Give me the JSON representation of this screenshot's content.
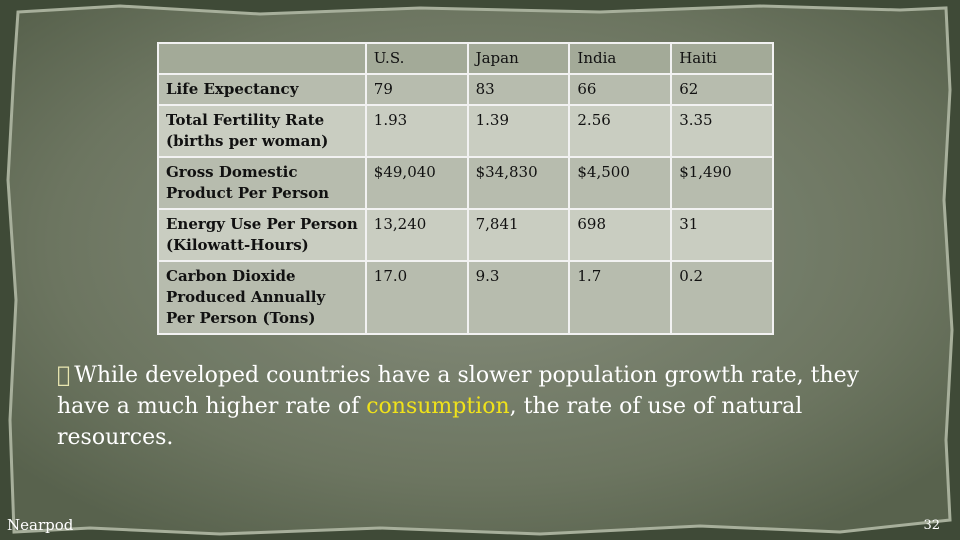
{
  "table": {
    "headers": [
      "",
      "U.S.",
      "Japan",
      "India",
      "Haiti"
    ],
    "rows": [
      {
        "label": "Life Expectancy",
        "values": [
          "79",
          "83",
          "66",
          "62"
        ]
      },
      {
        "label": "Total Fertility Rate (births per woman)",
        "values": [
          "1.93",
          "1.39",
          "2.56",
          "3.35"
        ]
      },
      {
        "label": "Gross Domestic Product Per Person",
        "values": [
          "$49,040",
          "$34,830",
          "$4,500",
          "$1,490"
        ]
      },
      {
        "label": "Energy Use Per Person (Kilowatt-Hours)",
        "values": [
          "13,240",
          "7,841",
          "698",
          "31"
        ]
      },
      {
        "label": "Carbon Dioxide Produced Annually Per Person (Tons)",
        "values": [
          "17.0",
          "9.3",
          "1.7",
          "0.2"
        ]
      }
    ]
  },
  "bullet": {
    "marker": "\u0000",
    "text_before": "While developed countries have a slower population growth rate, they have a much higher rate of ",
    "highlight": "consumption",
    "text_after": ", the rate of use of natural resources."
  },
  "footer": {
    "brand": "Nearpod",
    "page_number": "32"
  },
  "colors": {
    "background": "#3f4a37",
    "slab": "#6f7862",
    "highlight": "#f0e21a"
  }
}
